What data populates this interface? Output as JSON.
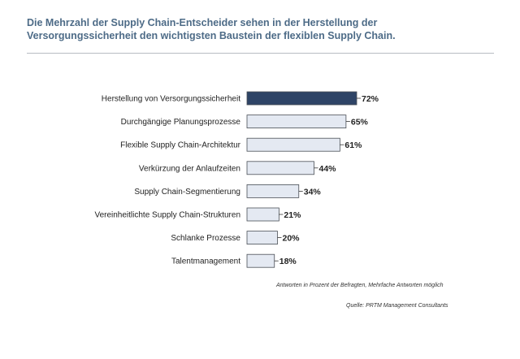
{
  "title_line1": "Die Mehrzahl der Supply Chain-Entscheider sehen in der Herstellung der",
  "title_line2": "Versorgungssicherheit den wichtigsten Baustein der flexiblen Supply Chain.",
  "note": "Antworten in Prozent der Befragten, Mehrfache Antworten möglich",
  "source": "Quelle: PRTM  Management Consultants",
  "chart_data": {
    "type": "bar",
    "orientation": "horizontal",
    "title": "Die Mehrzahl der Supply Chain-Entscheider sehen in der Herstellung der Versorgungssicherheit den wichtigsten Baustein der flexiblen Supply Chain.",
    "categories": [
      "Herstellung von Versorgungssicherheit",
      "Durchgängige Planungsprozesse",
      "Flexible Supply Chain-Architektur",
      "Verkürzung der  Anlaufzeiten",
      "Supply Chain-Segmentierung",
      "Vereinheitlichte Supply Chain-Strukturen",
      "Schlanke Prozesse",
      "Talentmanagement"
    ],
    "values": [
      72,
      65,
      61,
      44,
      34,
      21,
      20,
      18
    ],
    "value_labels": [
      "72%",
      "65%",
      "61%",
      "44%",
      "34%",
      "21%",
      "20%",
      "18%"
    ],
    "unit": "%",
    "xlim": [
      0,
      72
    ],
    "colors": {
      "highlight": "#2e4466",
      "bar": "#e4e9f2",
      "border": "#4a4f56"
    },
    "grid": false,
    "legend": "none"
  }
}
